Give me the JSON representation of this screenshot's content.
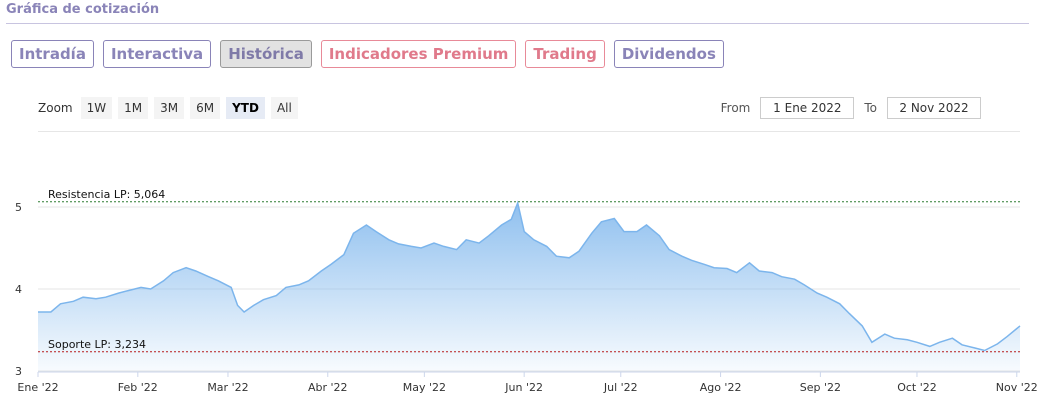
{
  "header": {
    "title": "Gráfica de cotización"
  },
  "tabs": [
    {
      "label": "Intradía",
      "active": false,
      "premium": false
    },
    {
      "label": "Interactiva",
      "active": false,
      "premium": false
    },
    {
      "label": "Histórica",
      "active": true,
      "premium": false
    },
    {
      "label": "Indicadores Premium",
      "active": false,
      "premium": true
    },
    {
      "label": "Trading",
      "active": false,
      "premium": true
    },
    {
      "label": "Dividendos",
      "active": false,
      "premium": false
    }
  ],
  "zoom": {
    "label": "Zoom",
    "buttons": [
      "1W",
      "1M",
      "3M",
      "6M",
      "YTD",
      "All"
    ],
    "selected": "YTD"
  },
  "range": {
    "from_label": "From",
    "from_value": "1 Ene 2022",
    "to_label": "To",
    "to_value": "2 Nov 2022"
  },
  "chart_data": {
    "type": "area",
    "x_tick_labels": [
      "Ene '22",
      "Feb '22",
      "Mar '22",
      "Abr '22",
      "May '22",
      "Jun '22",
      "Jul '22",
      "Ago '22",
      "Sep '22",
      "Oct '22",
      "Nov '22"
    ],
    "y_tick_labels": [
      "3",
      "4",
      "5"
    ],
    "ylim": [
      2.85,
      5.2
    ],
    "grid": true,
    "colors": {
      "line": "#7cb5ec",
      "fill_top": "#7cb5ec",
      "resistance": "#2e7d32",
      "support": "#b71c1c"
    },
    "reference_lines": [
      {
        "label": "Resistencia LP: 5,064",
        "value": 5.064
      },
      {
        "label": "Soporte LP: 3,234",
        "value": 3.234
      }
    ],
    "x": [
      "2022-01-01",
      "2022-01-05",
      "2022-01-08",
      "2022-01-12",
      "2022-01-15",
      "2022-01-19",
      "2022-01-22",
      "2022-01-26",
      "2022-01-29",
      "2022-02-02",
      "2022-02-05",
      "2022-02-09",
      "2022-02-12",
      "2022-02-16",
      "2022-02-19",
      "2022-02-23",
      "2022-02-26",
      "2022-03-02",
      "2022-03-04",
      "2022-03-06",
      "2022-03-09",
      "2022-03-12",
      "2022-03-16",
      "2022-03-19",
      "2022-03-23",
      "2022-03-26",
      "2022-03-30",
      "2022-04-02",
      "2022-04-06",
      "2022-04-09",
      "2022-04-13",
      "2022-04-16",
      "2022-04-20",
      "2022-04-23",
      "2022-04-27",
      "2022-04-30",
      "2022-05-04",
      "2022-05-07",
      "2022-05-11",
      "2022-05-14",
      "2022-05-18",
      "2022-05-21",
      "2022-05-25",
      "2022-05-28",
      "2022-05-30",
      "2022-06-01",
      "2022-06-04",
      "2022-06-08",
      "2022-06-11",
      "2022-06-15",
      "2022-06-18",
      "2022-06-22",
      "2022-06-25",
      "2022-06-29",
      "2022-07-02",
      "2022-07-06",
      "2022-07-09",
      "2022-07-13",
      "2022-07-16",
      "2022-07-20",
      "2022-07-23",
      "2022-07-27",
      "2022-07-30",
      "2022-08-03",
      "2022-08-06",
      "2022-08-10",
      "2022-08-13",
      "2022-08-17",
      "2022-08-20",
      "2022-08-24",
      "2022-08-27",
      "2022-08-31",
      "2022-09-03",
      "2022-09-07",
      "2022-09-10",
      "2022-09-14",
      "2022-09-17",
      "2022-09-21",
      "2022-09-24",
      "2022-09-28",
      "2022-10-01",
      "2022-10-05",
      "2022-10-08",
      "2022-10-12",
      "2022-10-15",
      "2022-10-19",
      "2022-10-22",
      "2022-10-26",
      "2022-10-29",
      "2022-11-02"
    ],
    "values": [
      3.72,
      3.72,
      3.82,
      3.85,
      3.9,
      3.88,
      3.9,
      3.95,
      3.98,
      4.02,
      4.0,
      4.1,
      4.2,
      4.26,
      4.22,
      4.15,
      4.1,
      4.02,
      3.8,
      3.72,
      3.8,
      3.87,
      3.92,
      4.02,
      4.05,
      4.1,
      4.22,
      4.3,
      4.42,
      4.68,
      4.78,
      4.7,
      4.6,
      4.55,
      4.52,
      4.5,
      4.56,
      4.52,
      4.48,
      4.6,
      4.56,
      4.65,
      4.78,
      4.85,
      5.05,
      4.7,
      4.6,
      4.52,
      4.4,
      4.38,
      4.46,
      4.68,
      4.82,
      4.86,
      4.7,
      4.7,
      4.78,
      4.65,
      4.48,
      4.4,
      4.35,
      4.3,
      4.26,
      4.25,
      4.2,
      4.32,
      4.22,
      4.2,
      4.15,
      4.12,
      4.05,
      3.95,
      3.9,
      3.82,
      3.7,
      3.55,
      3.35,
      3.45,
      3.4,
      3.38,
      3.35,
      3.3,
      3.35,
      3.4,
      3.32,
      3.28,
      3.25,
      3.33,
      3.42,
      3.55
    ]
  }
}
